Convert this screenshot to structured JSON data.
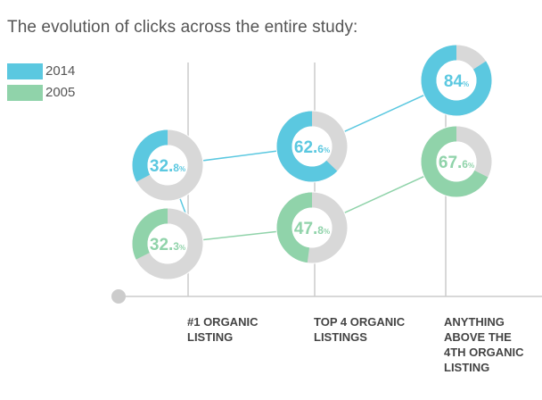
{
  "chart_data": {
    "type": "donut-line",
    "title": "The evolution of clicks across the entire study:",
    "categories": [
      "#1 ORGANIC LISTING",
      "TOP 4 ORGANIC LISTINGS",
      "ANYTHING ABOVE THE 4TH ORGANIC LISTING"
    ],
    "series": [
      {
        "name": "2014",
        "color": "#5bc8e0",
        "values": [
          32.8,
          62.6,
          84
        ]
      },
      {
        "name": "2005",
        "color": "#90d3aa",
        "values": [
          32.3,
          47.8,
          67.6
        ]
      }
    ],
    "remainder_color": "#d8d8d8",
    "grid": true,
    "legend": "top-left"
  }
}
